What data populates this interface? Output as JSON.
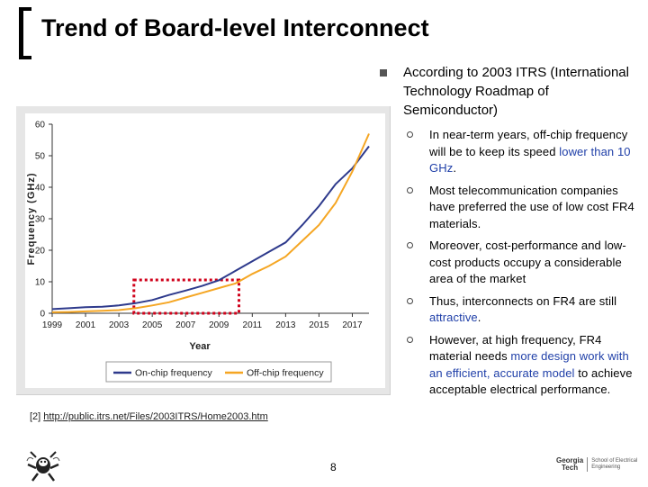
{
  "slide": {
    "title": "Trend of Board-level Interconnect",
    "main_bullet": "According to 2003 ITRS (International Technology Roadmap of Semiconductor)",
    "sub_bullets": [
      {
        "parts": [
          {
            "t": "In near-term years, off-chip frequency will be to keep its speed ",
            "hl": false
          },
          {
            "t": "lower than 10 GHz",
            "hl": true
          },
          {
            "t": ".",
            "hl": false
          }
        ]
      },
      {
        "parts": [
          {
            "t": "Most telecommunication companies have preferred the use of low cost FR4 materials.",
            "hl": false
          }
        ]
      },
      {
        "parts": [
          {
            "t": "Moreover, cost-performance and low-cost products occupy a considerable area of the market",
            "hl": false
          }
        ]
      },
      {
        "parts": [
          {
            "t": "Thus, interconnects on FR4 are still ",
            "hl": false
          },
          {
            "t": "attractive",
            "hl": true
          },
          {
            "t": ".",
            "hl": false
          }
        ]
      },
      {
        "parts": [
          {
            "t": "However, at high frequency, FR4 material needs ",
            "hl": false
          },
          {
            "t": "more design work with an efficient, accurate model",
            "hl": true
          },
          {
            "t": " to achieve acceptable electrical performance.",
            "hl": false
          }
        ]
      }
    ],
    "reference_prefix": "[2] ",
    "reference_link": "http://public.itrs.net/Files/2003ITRS/Home2003.htm",
    "page_number": "8",
    "logo_text_line1": "Georgia",
    "logo_text_line2": "Tech",
    "logo_ece1": "School of Electrical",
    "logo_ece2": "Engineering"
  },
  "colors": {
    "on_chip": "#2e3a8c",
    "off_chip": "#f5a623",
    "highlight_box": "#d0021b",
    "highlight_text": "#1f3fa8"
  },
  "chart_data": {
    "type": "line",
    "xlabel": "Year",
    "ylabel": "Frequency (GHz)",
    "ylim": [
      0,
      60
    ],
    "yticks": [
      "0",
      "10",
      "20",
      "30",
      "40",
      "50",
      "60"
    ],
    "xticks": [
      "1999",
      "2001",
      "2003",
      "2005",
      "2007",
      "2009",
      "2011",
      "2013",
      "2015",
      "2017"
    ],
    "grid": false,
    "legend_position": "bottom",
    "series": [
      {
        "name": "On-chip frequency",
        "color": "#2e3a8c",
        "x": [
          1999,
          2000,
          2001,
          2002,
          2003,
          2004,
          2005,
          2006,
          2007,
          2008,
          2009,
          2010,
          2011,
          2012,
          2013,
          2014,
          2015,
          2016,
          2017,
          2018
        ],
        "y": [
          1.3,
          1.6,
          1.9,
          2.1,
          2.5,
          3.2,
          4.2,
          5.8,
          7.2,
          8.7,
          10.5,
          13.5,
          16.5,
          19.5,
          22.5,
          28,
          34,
          41,
          46,
          53
        ]
      },
      {
        "name": "Off-chip frequency",
        "color": "#f5a623",
        "x": [
          1999,
          2000,
          2001,
          2002,
          2003,
          2004,
          2005,
          2006,
          2007,
          2008,
          2009,
          2010,
          2011,
          2012,
          2013,
          2014,
          2015,
          2016,
          2017,
          2018
        ],
        "y": [
          0.3,
          0.4,
          0.6,
          0.8,
          1.0,
          1.6,
          2.5,
          3.5,
          5.0,
          6.5,
          8.0,
          9.5,
          12.5,
          15.0,
          18.0,
          23.0,
          28.0,
          35.0,
          45.0,
          57.0
        ]
      }
    ],
    "highlight_region": {
      "x": [
        2003.9,
        2010.2
      ],
      "y": [
        0,
        10
      ],
      "color": "#d0021b"
    }
  }
}
